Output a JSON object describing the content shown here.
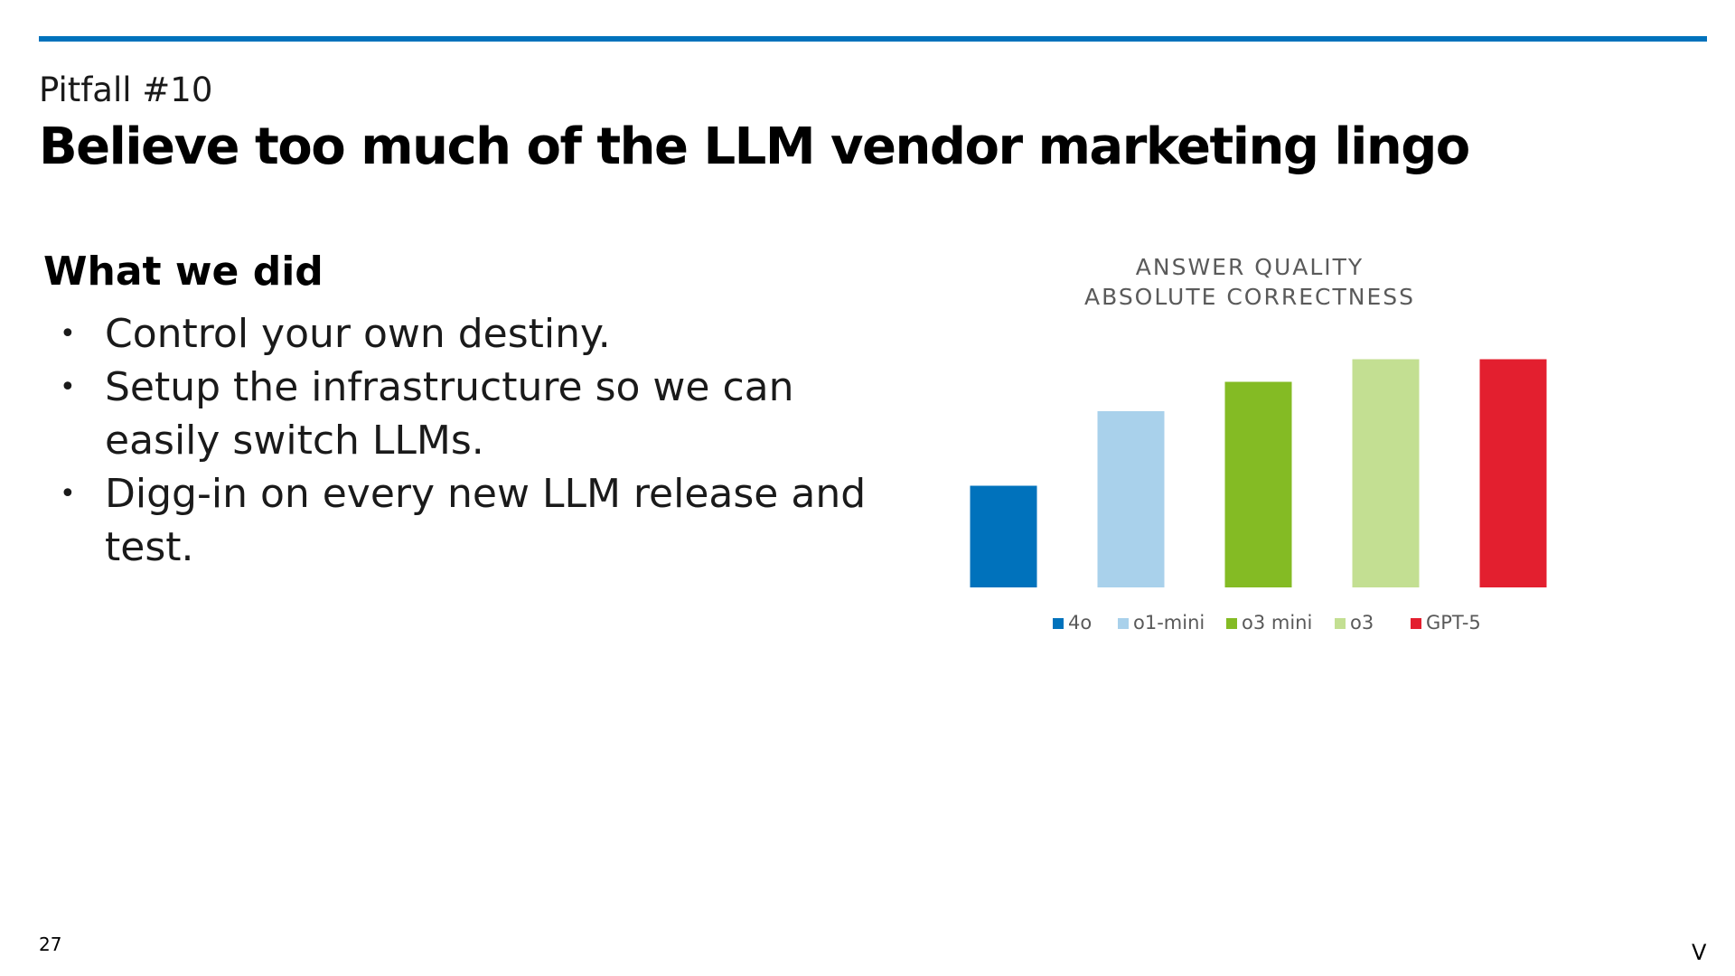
{
  "header": {
    "accent_color": "#0072bc",
    "kicker": "Pitfall #10",
    "title": "Believe too much of the LLM vendor marketing lingo"
  },
  "content": {
    "heading": "What we did",
    "bullets": [
      "Control your own destiny.",
      "Setup the infrastructure so we can easily switch LLMs.",
      "Digg-in on every new LLM release and test."
    ]
  },
  "chart_data": {
    "type": "bar",
    "title_lines": [
      "ANSWER QUALITY",
      "ABSOLUTE CORRECTNESS"
    ],
    "xlabel": "",
    "ylabel": "",
    "grid": false,
    "legend_position": "bottom",
    "ylim": [
      0,
      100
    ],
    "series": [
      {
        "name": "4o",
        "values": [
          45
        ],
        "color": "#0072bc"
      },
      {
        "name": "o1-mini",
        "values": [
          78
        ],
        "color": "#a9d1eb"
      },
      {
        "name": "o3 mini",
        "values": [
          91
        ],
        "color": "#84bb24"
      },
      {
        "name": "o3",
        "values": [
          101
        ],
        "color": "#c3df92"
      },
      {
        "name": "GPT-5",
        "values": [
          101
        ],
        "color": "#e31f2f"
      }
    ]
  },
  "footer": {
    "page_number": "27",
    "corner_mark": "V"
  }
}
